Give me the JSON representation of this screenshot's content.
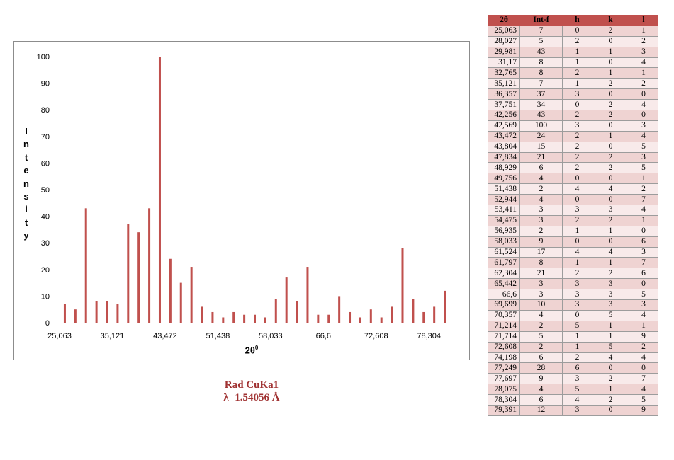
{
  "chart_data": {
    "type": "bar",
    "categories": [
      "25,063",
      "28,027",
      "29,981",
      "31,17",
      "32,765",
      "35,121",
      "36,357",
      "37,751",
      "42,256",
      "42,569",
      "43,472",
      "43,804",
      "47,834",
      "48,929",
      "49,756",
      "51,438",
      "52,944",
      "53,411",
      "54,475",
      "56,935",
      "58,033",
      "61,524",
      "61,797",
      "62,304",
      "65,442",
      "66,6",
      "69,699",
      "70,357",
      "71,214",
      "71,714",
      "72,608",
      "74,198",
      "77,249",
      "77,697",
      "78,075",
      "78,304",
      "79,391"
    ],
    "values": [
      7,
      5,
      43,
      8,
      8,
      7,
      37,
      34,
      43,
      100,
      24,
      15,
      21,
      6,
      4,
      2,
      4,
      3,
      3,
      2,
      9,
      17,
      8,
      21,
      3,
      3,
      10,
      4,
      2,
      5,
      2,
      6,
      28,
      9,
      4,
      6,
      12
    ],
    "xtick_labels": [
      "25,063",
      "35,121",
      "43,472",
      "51,438",
      "58,033",
      "66,6",
      "72,608",
      "78,304"
    ],
    "xtick_indices": [
      0,
      5,
      10,
      15,
      20,
      25,
      30,
      35
    ],
    "ylim": [
      0,
      100
    ],
    "yticks": [
      "0",
      "10",
      "20",
      "30",
      "40",
      "50",
      "60",
      "70",
      "80",
      "90",
      "100"
    ],
    "ylabel_letters": [
      "I",
      "n",
      "t",
      "e",
      "n",
      "s",
      "i",
      "t",
      "y"
    ],
    "xlabel": "2θ",
    "xlabel_sup": "0",
    "bar_color": "#c0504d",
    "grid": false,
    "legend": "none"
  },
  "caption": {
    "line1": "Rad CuKa1",
    "line2": "λ=1.54056 Å"
  },
  "table": {
    "headers": [
      "2θ",
      "Int-f",
      "h",
      "k",
      "l"
    ],
    "rows": [
      [
        "25,063",
        "7",
        "0",
        "2",
        "1"
      ],
      [
        "28,027",
        "5",
        "2",
        "0",
        "2"
      ],
      [
        "29,981",
        "43",
        "1",
        "1",
        "3"
      ],
      [
        "31,17",
        "8",
        "1",
        "0",
        "4"
      ],
      [
        "32,765",
        "8",
        "2",
        "1",
        "1"
      ],
      [
        "35,121",
        "7",
        "1",
        "2",
        "2"
      ],
      [
        "36,357",
        "37",
        "3",
        "0",
        "0"
      ],
      [
        "37,751",
        "34",
        "0",
        "2",
        "4"
      ],
      [
        "42,256",
        "43",
        "2",
        "2",
        "0"
      ],
      [
        "42,569",
        "100",
        "3",
        "0",
        "3"
      ],
      [
        "43,472",
        "24",
        "2",
        "1",
        "4"
      ],
      [
        "43,804",
        "15",
        "2",
        "0",
        "5"
      ],
      [
        "47,834",
        "21",
        "2",
        "2",
        "3"
      ],
      [
        "48,929",
        "6",
        "2",
        "2",
        "5"
      ],
      [
        "49,756",
        "4",
        "0",
        "0",
        "1"
      ],
      [
        "51,438",
        "2",
        "4",
        "4",
        "2"
      ],
      [
        "52,944",
        "4",
        "0",
        "0",
        "7"
      ],
      [
        "53,411",
        "3",
        "3",
        "3",
        "4"
      ],
      [
        "54,475",
        "3",
        "2",
        "2",
        "1"
      ],
      [
        "56,935",
        "2",
        "1",
        "1",
        "0"
      ],
      [
        "58,033",
        "9",
        "0",
        "0",
        "6"
      ],
      [
        "61,524",
        "17",
        "4",
        "4",
        "3"
      ],
      [
        "61,797",
        "8",
        "1",
        "1",
        "7"
      ],
      [
        "62,304",
        "21",
        "2",
        "2",
        "6"
      ],
      [
        "65,442",
        "3",
        "3",
        "3",
        "0"
      ],
      [
        "66,6",
        "3",
        "3",
        "3",
        "5"
      ],
      [
        "69,699",
        "10",
        "3",
        "3",
        "3"
      ],
      [
        "70,357",
        "4",
        "0",
        "5",
        "4"
      ],
      [
        "71,214",
        "2",
        "5",
        "1",
        "1"
      ],
      [
        "71,714",
        "5",
        "1",
        "1",
        "9"
      ],
      [
        "72,608",
        "2",
        "1",
        "5",
        "2"
      ],
      [
        "74,198",
        "6",
        "2",
        "4",
        "4"
      ],
      [
        "77,249",
        "28",
        "6",
        "0",
        "0"
      ],
      [
        "77,697",
        "9",
        "3",
        "2",
        "7"
      ],
      [
        "78,075",
        "4",
        "5",
        "1",
        "4"
      ],
      [
        "78,304",
        "6",
        "4",
        "2",
        "5"
      ],
      [
        "79,391",
        "12",
        "3",
        "0",
        "9"
      ]
    ]
  }
}
